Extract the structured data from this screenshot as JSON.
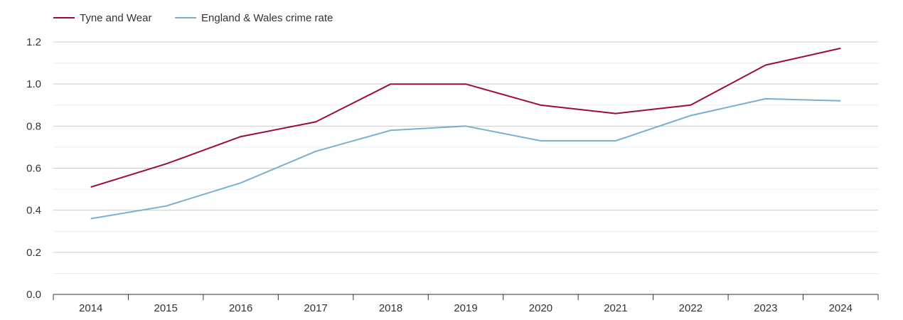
{
  "chart_data": {
    "type": "line",
    "title": "",
    "xlabel": "",
    "ylabel": "",
    "categories": [
      "2014",
      "2015",
      "2016",
      "2017",
      "2018",
      "2019",
      "2020",
      "2021",
      "2022",
      "2023",
      "2024"
    ],
    "ylim": [
      0,
      1.2
    ],
    "y_ticks": [
      "0.0",
      "0.2",
      "0.4",
      "0.6",
      "0.8",
      "1.0",
      "1.2"
    ],
    "grid": true,
    "legend_position": "top-left",
    "series": [
      {
        "name": "Tyne and Wear",
        "color": "#9b0d35",
        "values": [
          0.51,
          0.62,
          0.75,
          0.82,
          1.0,
          1.0,
          0.9,
          0.86,
          0.9,
          1.09,
          1.17
        ]
      },
      {
        "name": "England & Wales crime rate",
        "color": "#7aafd0",
        "values": [
          0.36,
          0.42,
          0.53,
          0.68,
          0.78,
          0.8,
          0.73,
          0.73,
          0.85,
          0.93,
          0.92
        ]
      }
    ]
  }
}
